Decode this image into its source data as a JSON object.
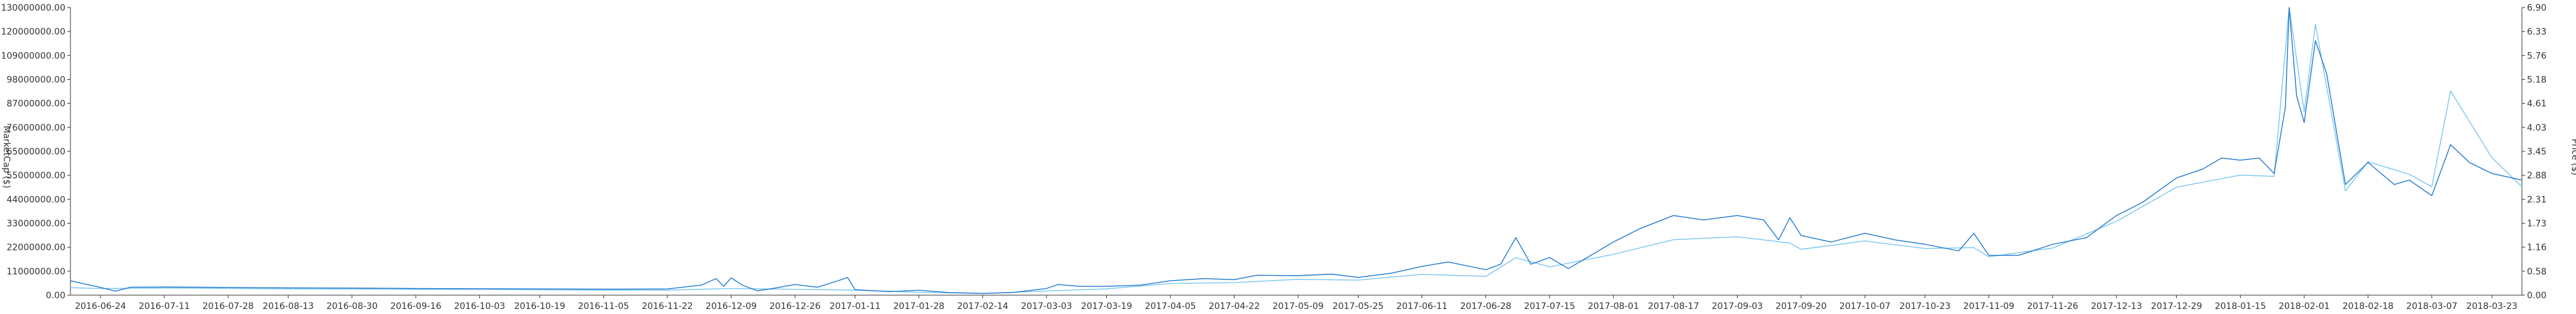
{
  "chart_data": {
    "type": "line",
    "title": "",
    "xlabel": "",
    "ylabel_left": "MarketCap ($)",
    "ylabel_right": "Price ($)",
    "x_tick_labels": [
      "2016-06-24",
      "2016-07-11",
      "2016-07-28",
      "2016-08-13",
      "2016-08-30",
      "2016-09-16",
      "2016-10-03",
      "2016-10-19",
      "2016-11-05",
      "2016-11-22",
      "2016-12-09",
      "2016-12-26",
      "2017-01-11",
      "2017-01-28",
      "2017-02-14",
      "2017-03-03",
      "2017-03-19",
      "2017-04-05",
      "2017-04-22",
      "2017-05-09",
      "2017-05-25",
      "2017-06-11",
      "2017-06-28",
      "2017-07-15",
      "2017-08-01",
      "2017-08-17",
      "2017-09-03",
      "2017-09-20",
      "2017-10-07",
      "2017-10-23",
      "2017-11-09",
      "2017-11-26",
      "2017-12-13",
      "2017-12-29",
      "2018-01-15",
      "2018-02-01",
      "2018-02-18",
      "2018-03-07",
      "2018-03-23"
    ],
    "y_left_ticks": [
      "0.00",
      "11000000.00",
      "22000000.00",
      "33000000.00",
      "44000000.00",
      "55000000.00",
      "65000000.00",
      "76000000.00",
      "87000000.00",
      "98000000.00",
      "109000000.00",
      "120000000.00",
      "130000000.00"
    ],
    "y_right_ticks": [
      "0.00",
      "0.58",
      "1.16",
      "1.73",
      "2.31",
      "2.88",
      "3.45",
      "4.03",
      "4.61",
      "5.18",
      "5.76",
      "6.33",
      "6.90"
    ],
    "ylim_left": [
      0,
      130000000
    ],
    "ylim_right": [
      0,
      6.9
    ],
    "grid": false,
    "series": [
      {
        "name": "MarketCap ($)",
        "axis": "left",
        "color": "#1f77d0",
        "points": [
          [
            "2016-06-16",
            6500000
          ],
          [
            "2016-06-20",
            5000000
          ],
          [
            "2016-06-24",
            3500000
          ],
          [
            "2016-06-28",
            1800000
          ],
          [
            "2016-07-02",
            3600000
          ],
          [
            "2016-07-11",
            3700000
          ],
          [
            "2016-07-28",
            3500000
          ],
          [
            "2016-08-13",
            3300000
          ],
          [
            "2016-08-30",
            3200000
          ],
          [
            "2016-09-16",
            3000000
          ],
          [
            "2016-10-03",
            2900000
          ],
          [
            "2016-10-19",
            2800000
          ],
          [
            "2016-11-05",
            2700000
          ],
          [
            "2016-11-22",
            2800000
          ],
          [
            "2016-12-01",
            4500000
          ],
          [
            "2016-12-05",
            7500000
          ],
          [
            "2016-12-07",
            4000000
          ],
          [
            "2016-12-09",
            7800000
          ],
          [
            "2016-12-12",
            4500000
          ],
          [
            "2016-12-16",
            2000000
          ],
          [
            "2016-12-20",
            3000000
          ],
          [
            "2016-12-26",
            4800000
          ],
          [
            "2017-01-01",
            3600000
          ],
          [
            "2017-01-07",
            6800000
          ],
          [
            "2017-01-09",
            8000000
          ],
          [
            "2017-01-11",
            2500000
          ],
          [
            "2017-01-20",
            1600000
          ],
          [
            "2017-01-28",
            2200000
          ],
          [
            "2017-02-05",
            1200000
          ],
          [
            "2017-02-14",
            800000
          ],
          [
            "2017-02-22",
            1200000
          ],
          [
            "2017-03-03",
            3000000
          ],
          [
            "2017-03-06",
            4800000
          ],
          [
            "2017-03-12",
            4000000
          ],
          [
            "2017-03-19",
            4000000
          ],
          [
            "2017-03-28",
            4500000
          ],
          [
            "2017-04-05",
            6500000
          ],
          [
            "2017-04-14",
            7500000
          ],
          [
            "2017-04-22",
            7000000
          ],
          [
            "2017-04-28",
            9000000
          ],
          [
            "2017-05-09",
            8800000
          ],
          [
            "2017-05-18",
            9500000
          ],
          [
            "2017-05-25",
            8000000
          ],
          [
            "2017-06-03",
            10000000
          ],
          [
            "2017-06-11",
            13000000
          ],
          [
            "2017-06-18",
            15000000
          ],
          [
            "2017-06-28",
            11500000
          ],
          [
            "2017-07-02",
            14000000
          ],
          [
            "2017-07-06",
            26000000
          ],
          [
            "2017-07-10",
            14000000
          ],
          [
            "2017-07-15",
            17000000
          ],
          [
            "2017-07-20",
            12000000
          ],
          [
            "2017-07-25",
            17000000
          ],
          [
            "2017-08-01",
            24000000
          ],
          [
            "2017-08-08",
            30000000
          ],
          [
            "2017-08-17",
            36000000
          ],
          [
            "2017-08-25",
            34000000
          ],
          [
            "2017-09-03",
            36000000
          ],
          [
            "2017-09-10",
            34000000
          ],
          [
            "2017-09-14",
            25000000
          ],
          [
            "2017-09-17",
            35000000
          ],
          [
            "2017-09-20",
            27000000
          ],
          [
            "2017-09-28",
            24000000
          ],
          [
            "2017-10-07",
            28000000
          ],
          [
            "2017-10-15",
            25000000
          ],
          [
            "2017-10-23",
            23000000
          ],
          [
            "2017-11-01",
            20000000
          ],
          [
            "2017-11-05",
            28000000
          ],
          [
            "2017-11-09",
            18000000
          ],
          [
            "2017-11-17",
            18000000
          ],
          [
            "2017-11-26",
            23000000
          ],
          [
            "2017-12-05",
            26000000
          ],
          [
            "2017-12-13",
            36000000
          ],
          [
            "2017-12-20",
            42000000
          ],
          [
            "2017-12-29",
            53000000
          ],
          [
            "2018-01-05",
            57000000
          ],
          [
            "2018-01-10",
            62000000
          ],
          [
            "2018-01-15",
            61000000
          ],
          [
            "2018-01-20",
            62000000
          ],
          [
            "2018-01-24",
            55000000
          ],
          [
            "2018-01-27",
            85000000
          ],
          [
            "2018-01-28",
            130000000
          ],
          [
            "2018-01-30",
            90000000
          ],
          [
            "2018-02-01",
            78000000
          ],
          [
            "2018-02-04",
            115000000
          ],
          [
            "2018-02-07",
            100000000
          ],
          [
            "2018-02-12",
            50000000
          ],
          [
            "2018-02-18",
            60000000
          ],
          [
            "2018-02-25",
            50000000
          ],
          [
            "2018-03-01",
            52000000
          ],
          [
            "2018-03-07",
            45000000
          ],
          [
            "2018-03-12",
            68000000
          ],
          [
            "2018-03-17",
            60000000
          ],
          [
            "2018-03-23",
            55000000
          ],
          [
            "2018-03-31",
            52000000
          ]
        ]
      },
      {
        "name": "Price ($)",
        "axis": "right",
        "color": "#78c6ef",
        "points": [
          [
            "2016-06-16",
            0.18
          ],
          [
            "2016-06-24",
            0.16
          ],
          [
            "2016-07-11",
            0.17
          ],
          [
            "2016-07-28",
            0.16
          ],
          [
            "2016-08-13",
            0.15
          ],
          [
            "2016-08-30",
            0.15
          ],
          [
            "2016-09-16",
            0.14
          ],
          [
            "2016-10-03",
            0.14
          ],
          [
            "2016-10-19",
            0.13
          ],
          [
            "2016-11-05",
            0.12
          ],
          [
            "2016-11-22",
            0.12
          ],
          [
            "2016-12-09",
            0.16
          ],
          [
            "2016-12-26",
            0.14
          ],
          [
            "2017-01-11",
            0.12
          ],
          [
            "2017-01-28",
            0.07
          ],
          [
            "2017-02-14",
            0.04
          ],
          [
            "2017-03-03",
            0.1
          ],
          [
            "2017-03-19",
            0.15
          ],
          [
            "2017-04-05",
            0.28
          ],
          [
            "2017-04-22",
            0.3
          ],
          [
            "2017-05-09",
            0.38
          ],
          [
            "2017-05-25",
            0.36
          ],
          [
            "2017-06-11",
            0.5
          ],
          [
            "2017-06-28",
            0.45
          ],
          [
            "2017-07-06",
            0.9
          ],
          [
            "2017-07-15",
            0.68
          ],
          [
            "2017-08-01",
            0.98
          ],
          [
            "2017-08-17",
            1.33
          ],
          [
            "2017-09-03",
            1.4
          ],
          [
            "2017-09-17",
            1.25
          ],
          [
            "2017-09-20",
            1.1
          ],
          [
            "2017-10-07",
            1.3
          ],
          [
            "2017-10-23",
            1.12
          ],
          [
            "2017-11-05",
            1.14
          ],
          [
            "2017-11-09",
            0.92
          ],
          [
            "2017-11-26",
            1.13
          ],
          [
            "2017-12-13",
            1.77
          ],
          [
            "2017-12-29",
            2.59
          ],
          [
            "2018-01-15",
            2.88
          ],
          [
            "2018-01-24",
            2.85
          ],
          [
            "2018-01-28",
            6.9
          ],
          [
            "2018-02-01",
            4.4
          ],
          [
            "2018-02-04",
            6.5
          ],
          [
            "2018-02-12",
            2.5
          ],
          [
            "2018-02-18",
            3.2
          ],
          [
            "2018-03-01",
            2.9
          ],
          [
            "2018-03-07",
            2.6
          ],
          [
            "2018-03-12",
            4.9
          ],
          [
            "2018-03-23",
            3.3
          ],
          [
            "2018-03-31",
            2.6
          ]
        ]
      }
    ]
  }
}
